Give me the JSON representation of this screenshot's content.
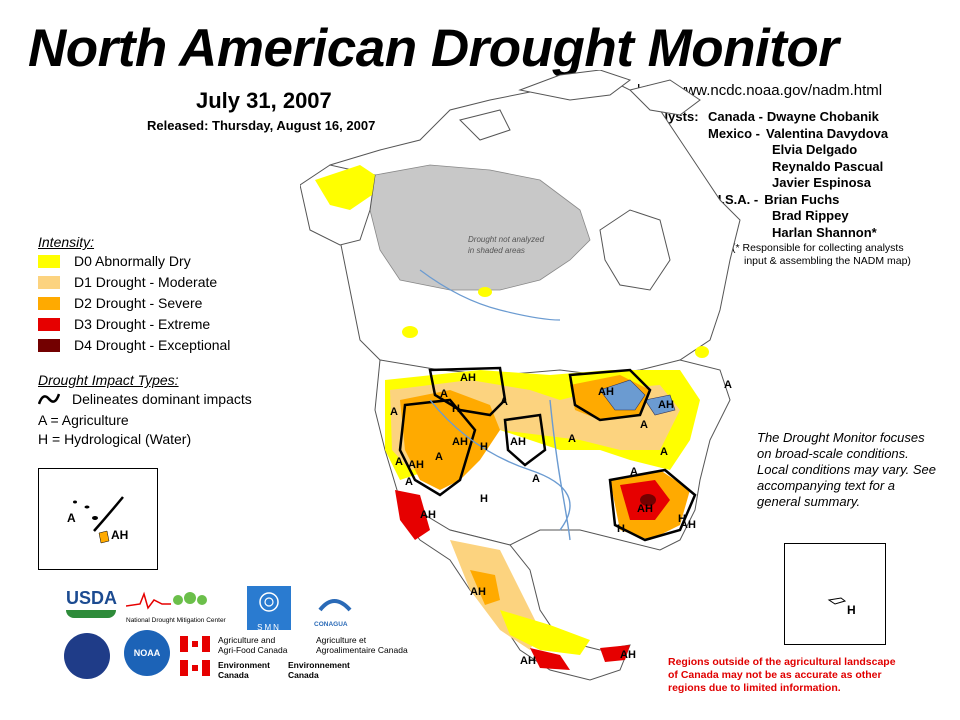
{
  "title": "North American Drought Monitor",
  "date": "July 31, 2007",
  "released": "Released: Thursday, August 16, 2007",
  "url": "http://www.ncdc.noaa.gov/nadm.html",
  "analysts": {
    "heading": "Analysts:",
    "rows": [
      {
        "country": "Canada -",
        "name": "Dwayne Chobanik"
      },
      {
        "country": "Mexico -",
        "name": "Valentina Davydova"
      },
      {
        "country": "",
        "name": "Elvia Delgado"
      },
      {
        "country": "",
        "name": "Reynaldo Pascual"
      },
      {
        "country": "",
        "name": "Javier Espinosa"
      },
      {
        "country": "U.S.A. -",
        "name": "Brian Fuchs"
      },
      {
        "country": "",
        "name": "Brad Rippey"
      },
      {
        "country": "",
        "name": "Harlan Shannon*"
      }
    ],
    "note_line1": "(* Responsible for collecting analysts",
    "note_line2": "input & assembling the NADM map)"
  },
  "legend": {
    "intensity_title": "Intensity:",
    "items": [
      {
        "label": "D0 Abnormally Dry",
        "color": "#ffff00"
      },
      {
        "label": "D1 Drought - Moderate",
        "color": "#fcd37f"
      },
      {
        "label": "D2 Drought - Severe",
        "color": "#ffaa00"
      },
      {
        "label": "D3 Drought - Extreme",
        "color": "#e60000"
      },
      {
        "label": "D4 Drought - Exceptional",
        "color": "#730000"
      }
    ],
    "impact_title": "Drought Impact Types:",
    "impact_line": "Delineates dominant impacts",
    "impact_a": "A = Agriculture",
    "impact_h": "H = Hydrological (Water)"
  },
  "map": {
    "not_analyzed_line1": "Drought not analyzed",
    "not_analyzed_line2": "in shaded areas",
    "labels": [
      "AH",
      "H",
      "A",
      "A",
      "AH",
      "A",
      "AH",
      "A",
      "A",
      "AH",
      "H",
      "A",
      "AH",
      "H",
      "A",
      "AH",
      "A",
      "A",
      "AH",
      "A",
      "A",
      "AH",
      "H",
      "AH",
      "H",
      "AH",
      "AH",
      "AH",
      "A"
    ]
  },
  "insets": {
    "hawaii_labels": [
      "A",
      "AH"
    ],
    "pr_label": "H"
  },
  "note": "The Drought Monitor focuses on broad-scale conditions. Local conditions may vary. See accompanying text for a general summary.",
  "footer": {
    "line1": "Regions outside of the agricultural landscape",
    "line2": "of Canada may not be as accurate as other",
    "line3": "regions due to limited information."
  },
  "logos": {
    "usda": "USDA",
    "ndmc": "National Drought Mitigation Center",
    "smn": "SMN",
    "conagua": "CONAGUA",
    "noaa": "NOAA",
    "agr_en_1": "Agriculture and",
    "agr_en_2": "Agri-Food Canada",
    "agr_fr_1": "Agriculture et",
    "agr_fr_2": "Agroalimentaire Canada",
    "env_en_1": "Environment",
    "env_en_2": "Canada",
    "env_fr_1": "Environnement",
    "env_fr_2": "Canada"
  },
  "colors": {
    "not_analyzed": "#c8c8c8",
    "water": "#6b9bd1",
    "footer_red": "#e00000"
  }
}
